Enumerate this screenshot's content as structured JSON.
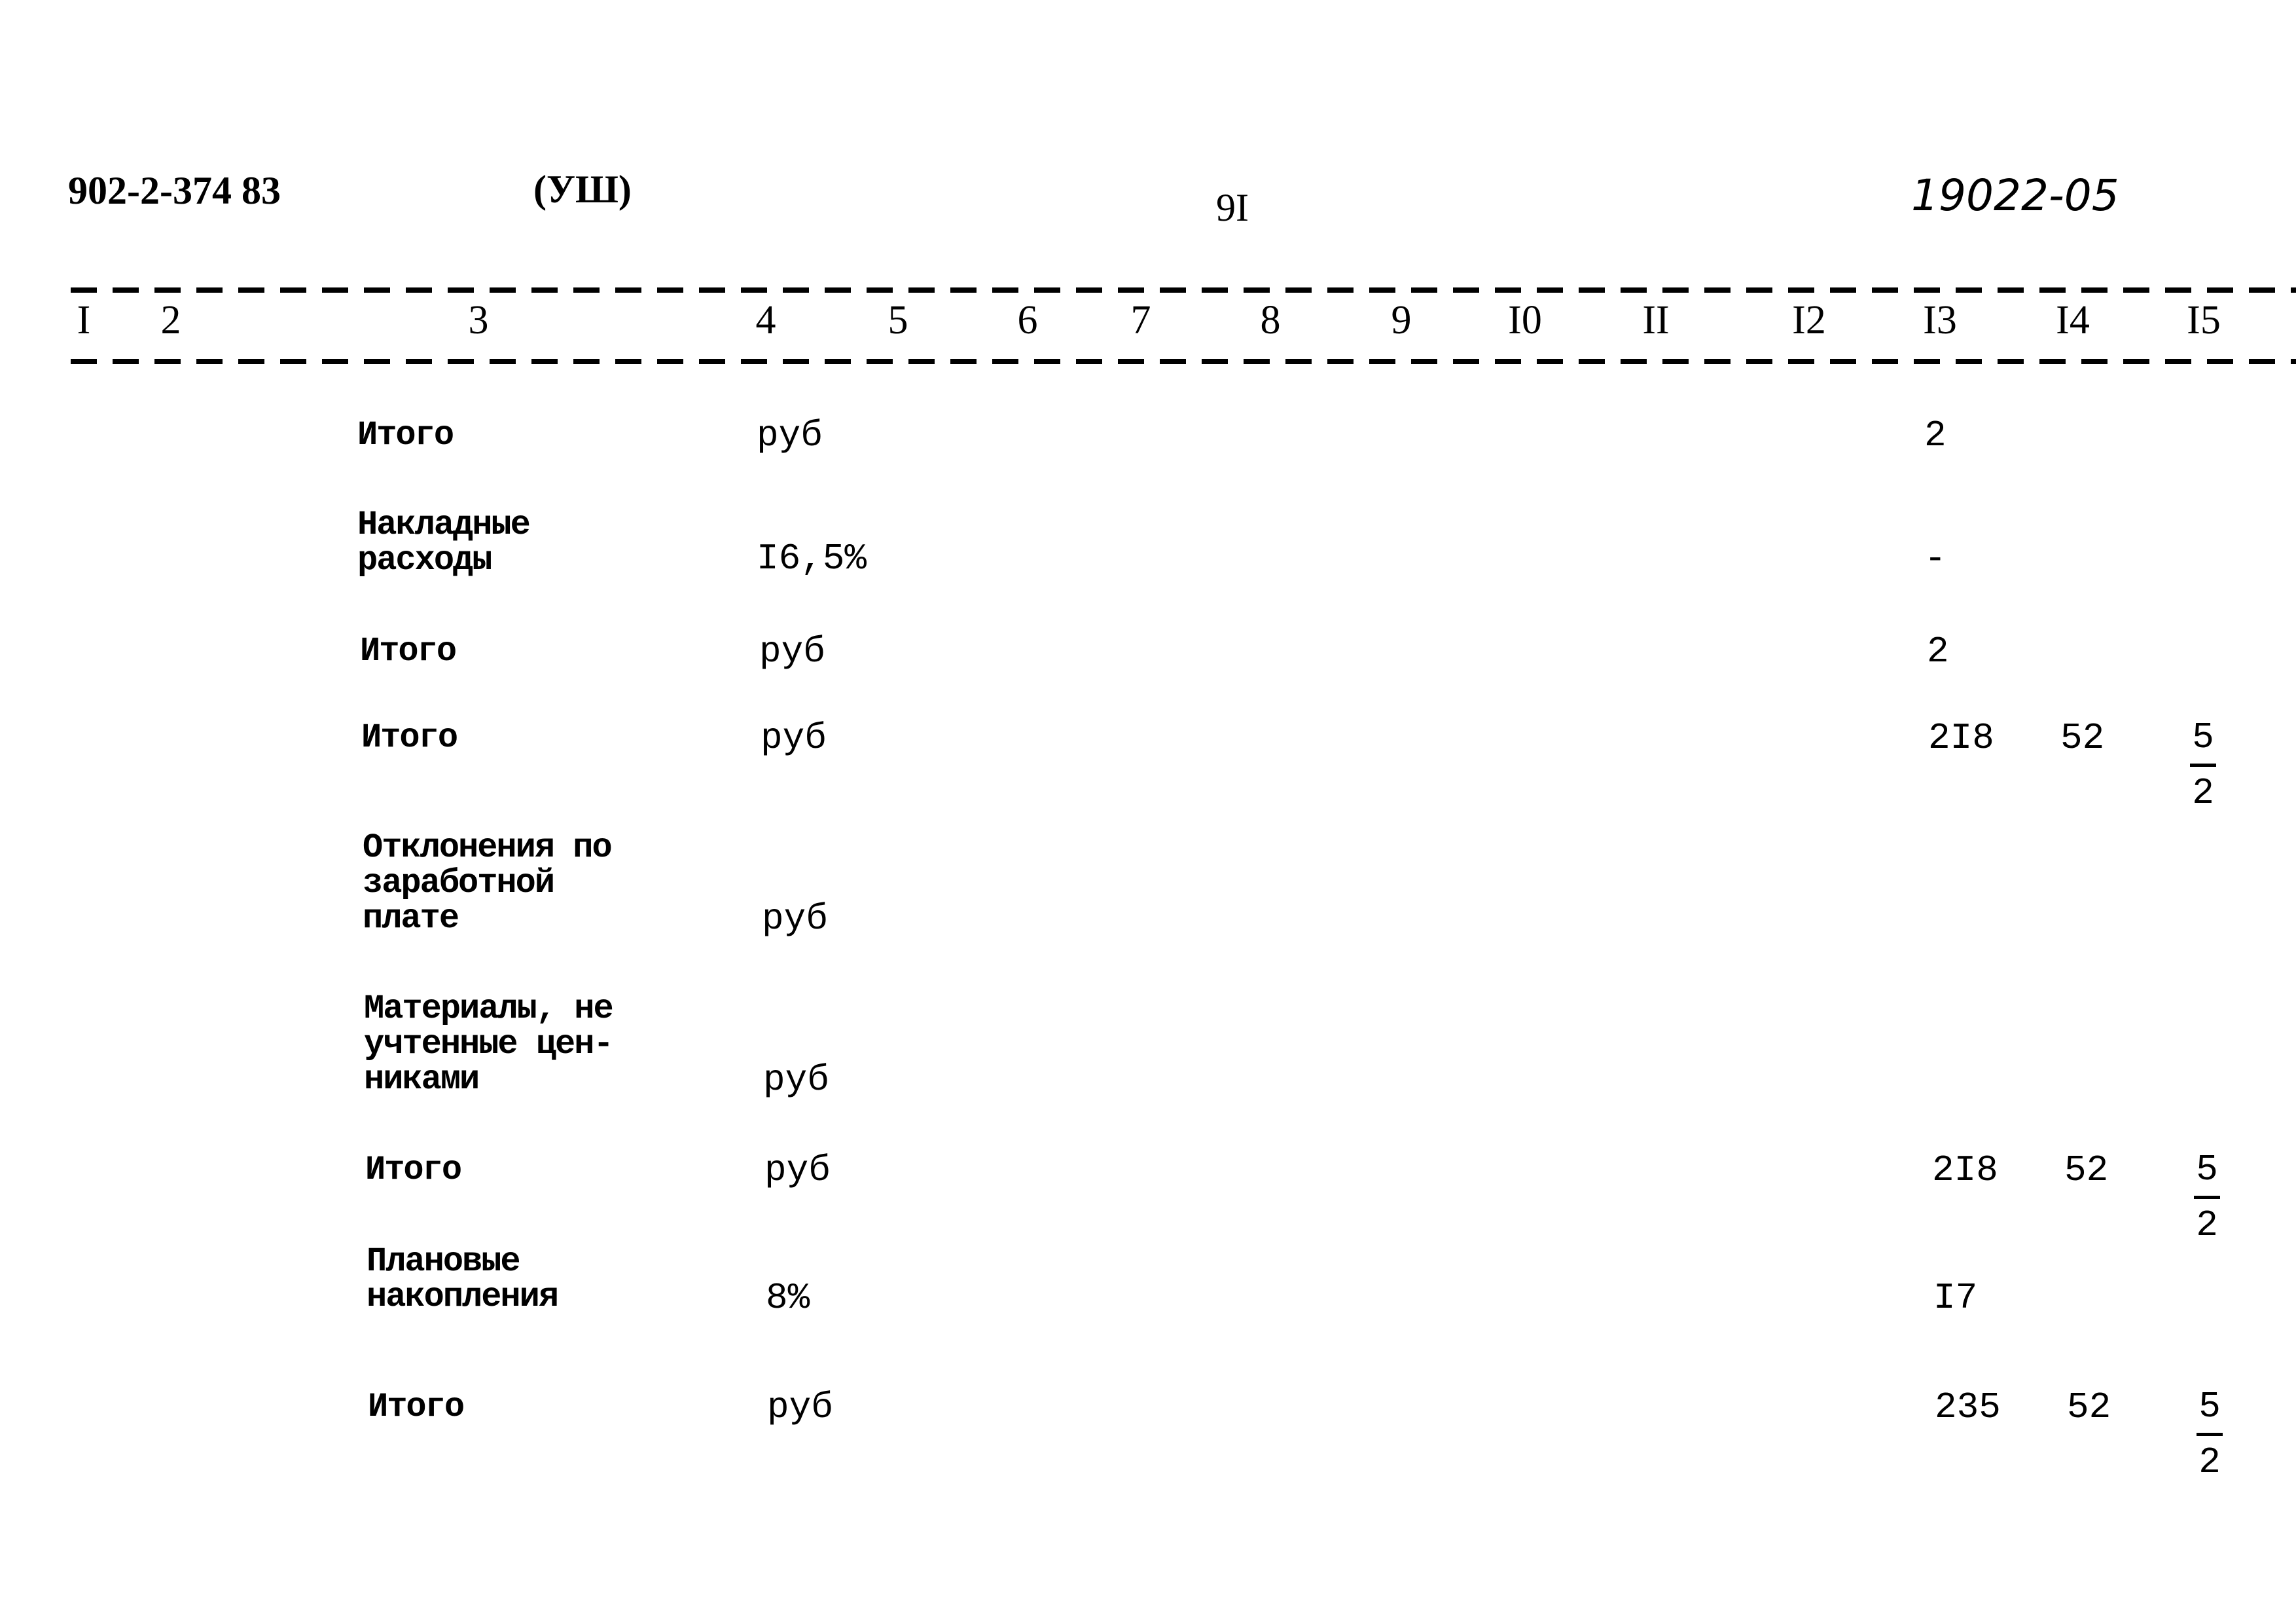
{
  "header": {
    "doc_code": "902-2-374 83",
    "part": "(УШ)",
    "page_number": "9I",
    "handwritten_number": "19022-05"
  },
  "columns": [
    "I",
    "2",
    "3",
    "4",
    "5",
    "6",
    "7",
    "8",
    "9",
    "I0",
    "II",
    "I2",
    "I3",
    "I4",
    "I5"
  ],
  "rows": [
    {
      "label": [
        "Итого"
      ],
      "unit": "руб",
      "c13": "2",
      "c14": "",
      "c15": null
    },
    {
      "label": [
        "Накладные",
        "расходы"
      ],
      "unit": "I6,5%",
      "c13": "-",
      "c14": "",
      "c15": null
    },
    {
      "label": [
        "Итого"
      ],
      "unit": "руб",
      "c13": "2",
      "c14": "",
      "c15": null
    },
    {
      "label": [
        "Итого"
      ],
      "unit": "руб",
      "c13": "2I8",
      "c14": "52",
      "c15": {
        "num": "5",
        "den": "2"
      }
    },
    {
      "label": [
        "Отклонения по",
        "заработной",
        "плате"
      ],
      "unit": "руб",
      "c13": "",
      "c14": "",
      "c15": null
    },
    {
      "label": [
        "Материалы, не",
        "учтенные цен-",
        "никами"
      ],
      "unit": "руб",
      "c13": "",
      "c14": "",
      "c15": null
    },
    {
      "label": [
        "Итого"
      ],
      "unit": "руб",
      "c13": "2I8",
      "c14": "52",
      "c15": {
        "num": "5",
        "den": "2"
      }
    },
    {
      "label": [
        "Плановые",
        "накопления"
      ],
      "unit": "8%",
      "c13": "I7",
      "c14": "",
      "c15": null
    },
    {
      "label": [
        "Итого"
      ],
      "unit": "руб",
      "c13": "235",
      "c14": "52",
      "c15": {
        "num": "5",
        "den": "2"
      }
    }
  ]
}
